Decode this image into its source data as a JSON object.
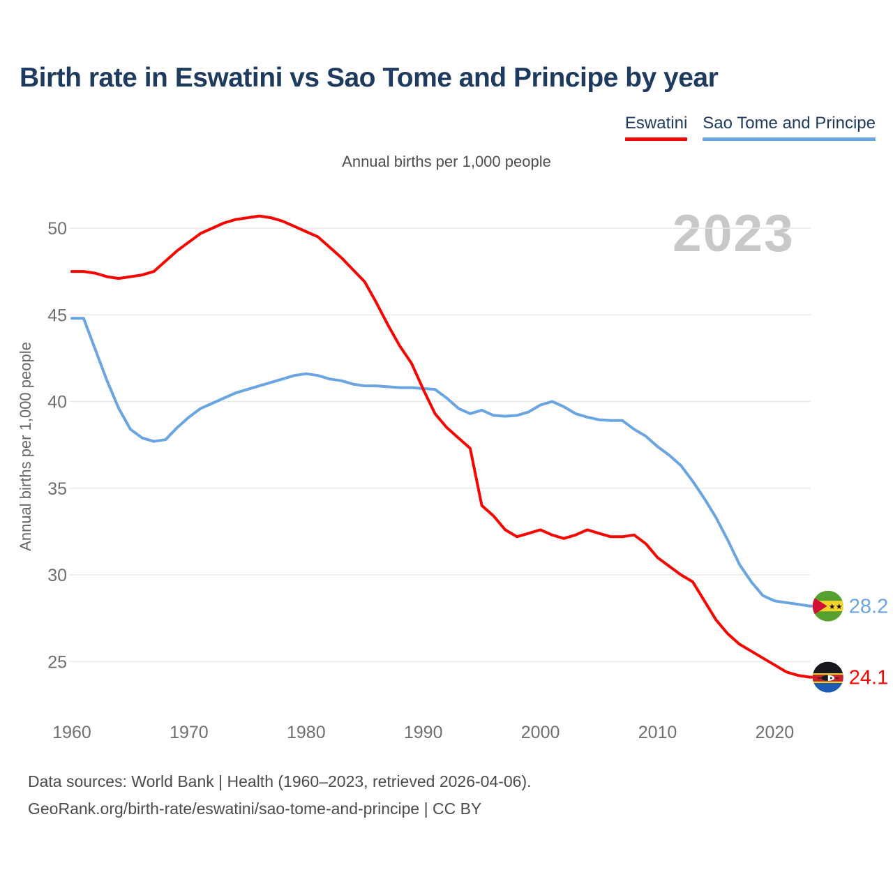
{
  "page": {
    "title": "Birth rate in Eswatini vs Sao Tome and Principe by year",
    "subtitle": "Annual births per 1,000 people",
    "watermark": "2023",
    "footer_line1": "Data sources: World Bank | Health (1960–2023, retrieved 2026-04-06).",
    "footer_line2": "GeoRank.org/birth-rate/eswatini/sao-tome-and-principe | CC BY"
  },
  "legend": [
    {
      "label": "Eswatini",
      "color": "#f80400"
    },
    {
      "label": "Sao Tome and Principe",
      "color": "#6aa5e2"
    }
  ],
  "icons": {
    "eswatini_flag": {
      "black": "#17181c",
      "yellow": "#fbd116",
      "red": "#c8202a",
      "blue": "#1d5bb5",
      "white": "#ffffff"
    },
    "sao_tome_flag": {
      "green": "#55a02e",
      "yellow": "#f6d42a",
      "red": "#d21034",
      "star": "#111111"
    }
  },
  "chart_data": {
    "type": "line",
    "title": "Birth rate in Eswatini vs Sao Tome and Principe by year",
    "subtitle": "Annual births per 1,000 people",
    "xlabel": "",
    "ylabel": "Annual births per 1,000 people",
    "xlim": [
      1960,
      2023
    ],
    "ylim": [
      24,
      51
    ],
    "grid": true,
    "legend_position": "top-right",
    "x_start_year": 1960,
    "x_ticks": [
      1960,
      1970,
      1980,
      1990,
      2000,
      2010,
      2020
    ],
    "y_ticks": [
      25,
      30,
      35,
      40,
      45,
      50
    ],
    "series": [
      {
        "name": "Eswatini",
        "color": "#f80400",
        "end_label": "24.1",
        "values": [
          47.5,
          47.5,
          47.4,
          47.2,
          47.1,
          47.2,
          47.3,
          47.5,
          48.1,
          48.7,
          49.2,
          49.7,
          50.0,
          50.3,
          50.5,
          50.6,
          50.7,
          50.6,
          50.4,
          50.1,
          49.8,
          49.5,
          48.9,
          48.3,
          47.6,
          46.9,
          45.7,
          44.4,
          43.2,
          42.2,
          40.7,
          39.3,
          38.5,
          37.9,
          37.3,
          34.0,
          33.4,
          32.6,
          32.2,
          32.4,
          32.6,
          32.3,
          32.1,
          32.3,
          32.6,
          32.4,
          32.2,
          32.2,
          32.3,
          31.8,
          31.0,
          30.5,
          30.0,
          29.6,
          28.5,
          27.4,
          26.6,
          26.0,
          25.6,
          25.2,
          24.8,
          24.4,
          24.2,
          24.1
        ]
      },
      {
        "name": "Sao Tome and Principe",
        "color": "#6aa5e2",
        "end_label": "28.2",
        "values": [
          44.8,
          44.8,
          43.0,
          41.2,
          39.6,
          38.4,
          37.9,
          37.7,
          37.8,
          38.5,
          39.1,
          39.6,
          39.9,
          40.2,
          40.5,
          40.7,
          40.9,
          41.1,
          41.3,
          41.5,
          41.6,
          41.5,
          41.3,
          41.2,
          41.0,
          40.9,
          40.9,
          40.85,
          40.8,
          40.8,
          40.75,
          40.7,
          40.2,
          39.6,
          39.3,
          39.5,
          39.2,
          39.15,
          39.2,
          39.4,
          39.8,
          40.0,
          39.7,
          39.3,
          39.1,
          38.95,
          38.9,
          38.9,
          38.4,
          38.0,
          37.4,
          36.9,
          36.3,
          35.4,
          34.4,
          33.3,
          32.0,
          30.6,
          29.6,
          28.8,
          28.5,
          28.4,
          28.3,
          28.2
        ]
      }
    ]
  }
}
